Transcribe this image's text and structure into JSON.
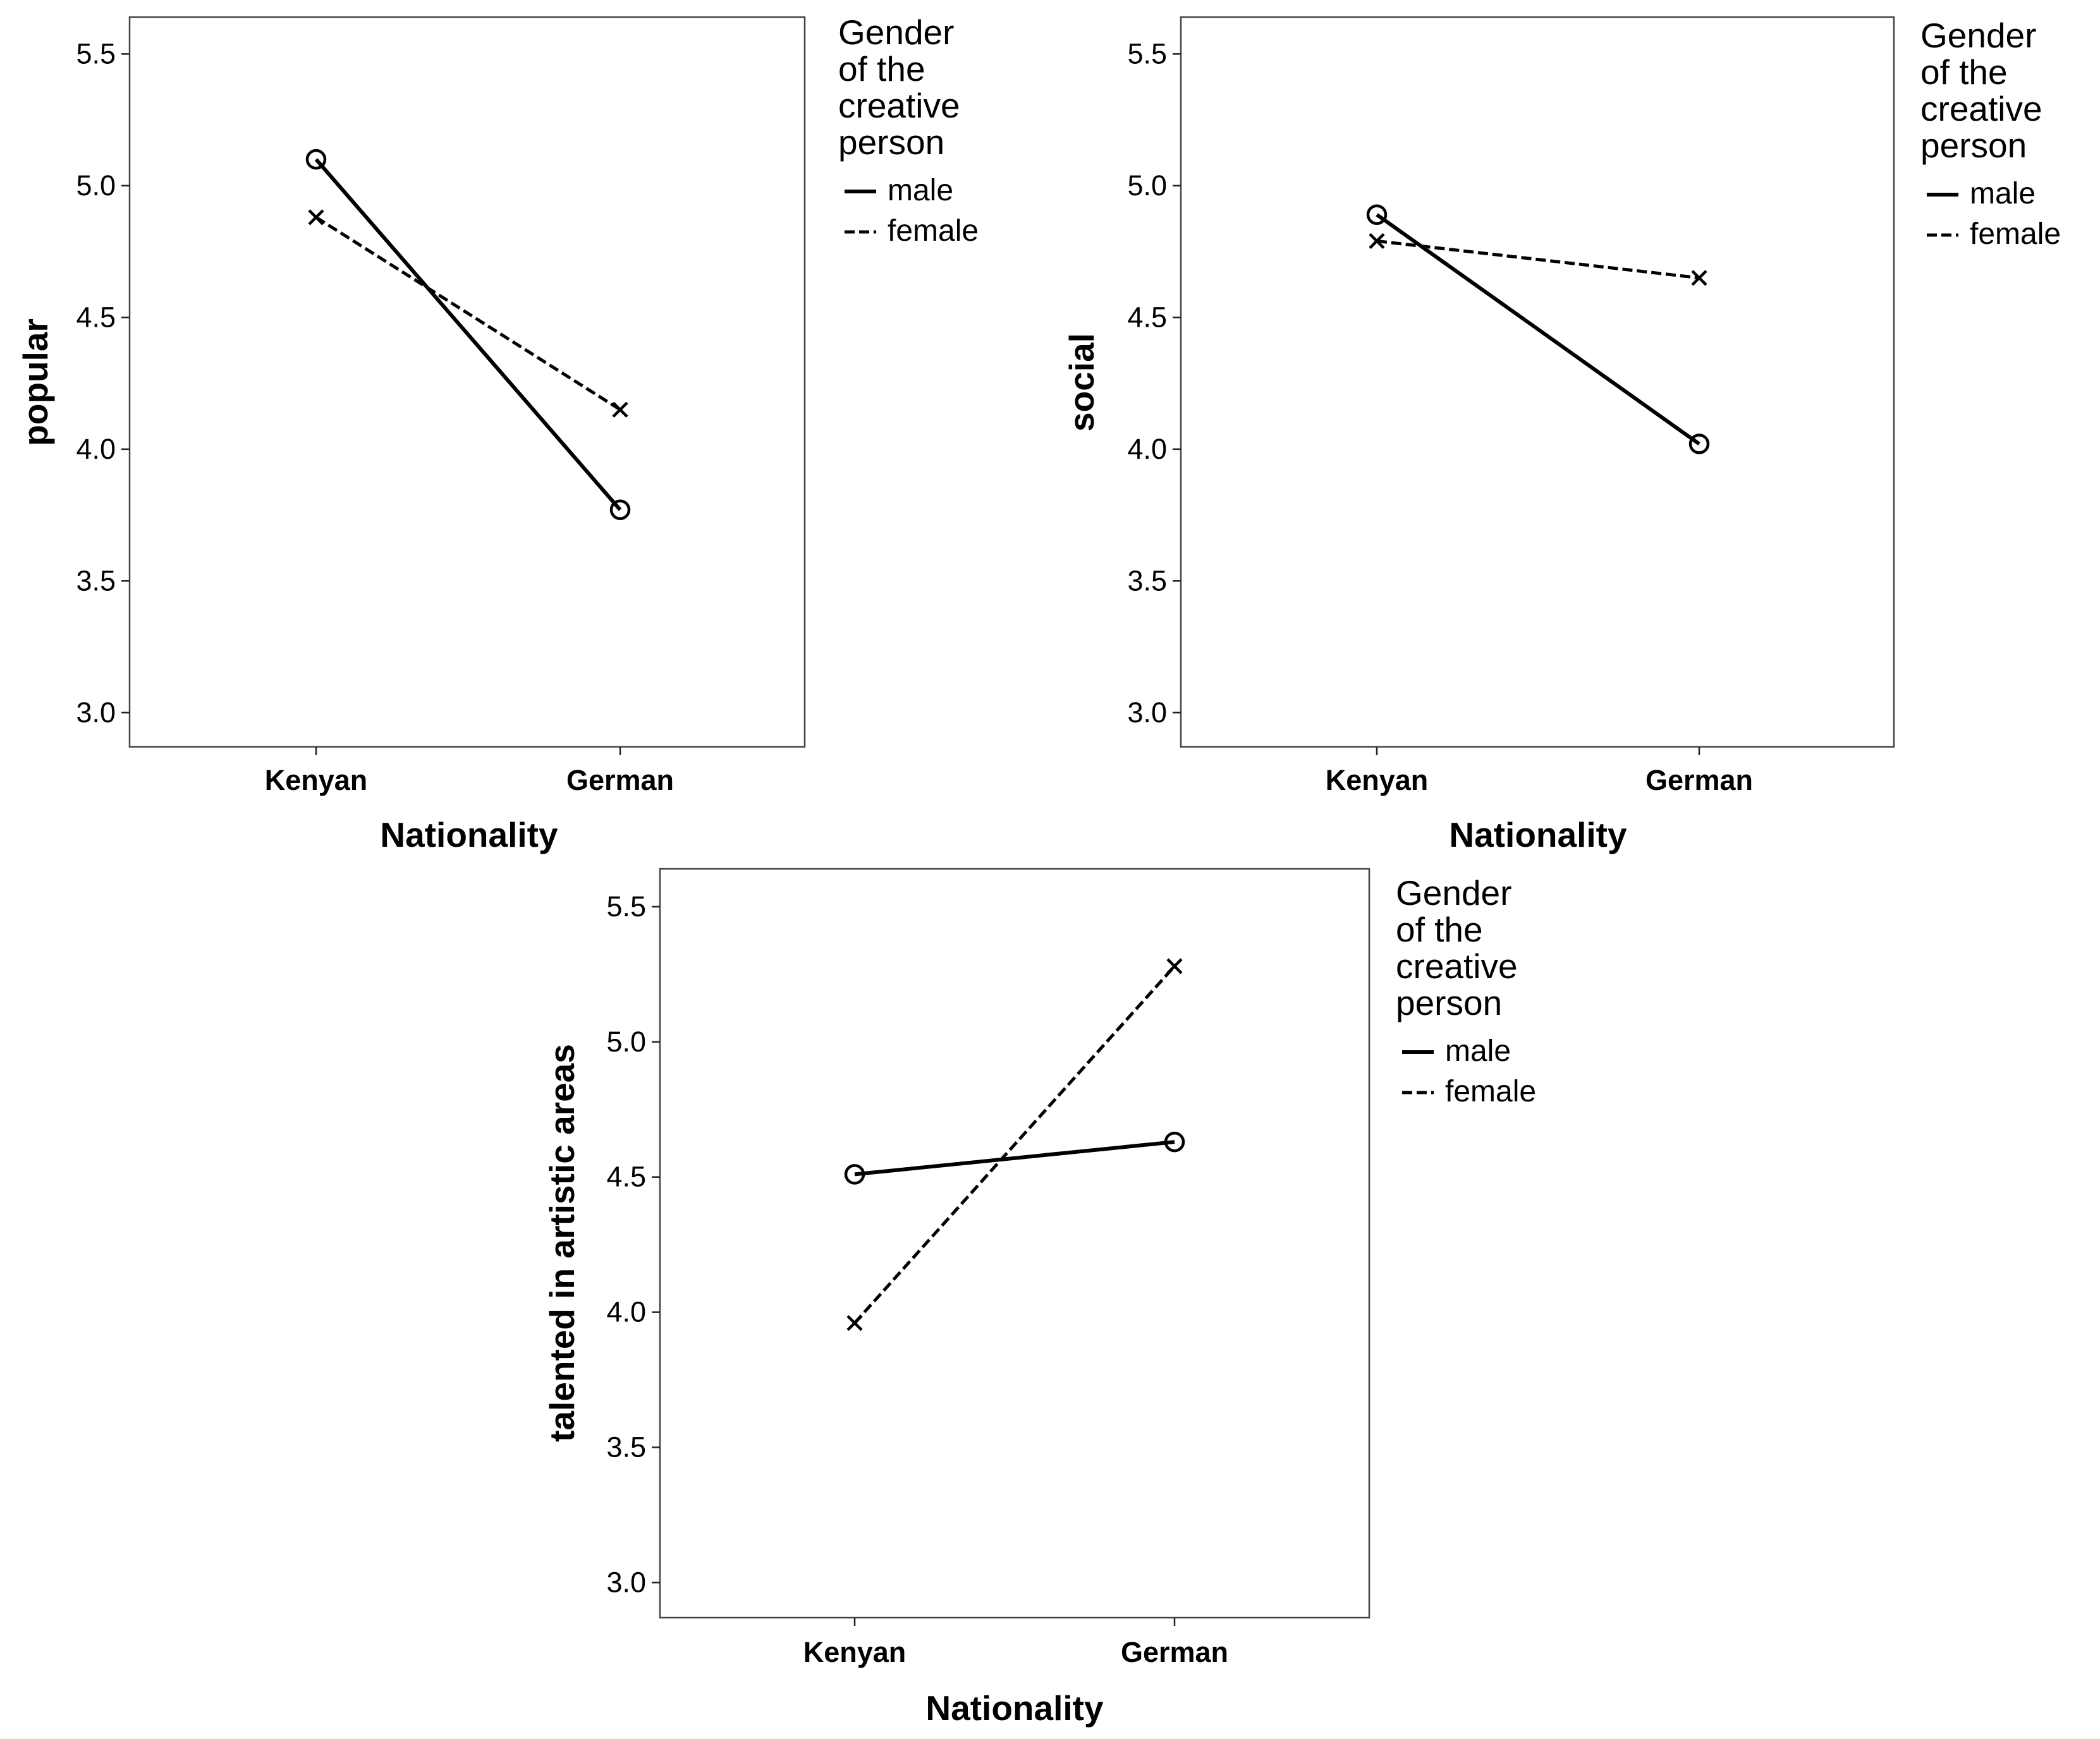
{
  "chart_data": [
    {
      "type": "line",
      "title": "",
      "xlabel": "Nationality",
      "ylabel": "popular",
      "categories": [
        "Kenyan",
        "German"
      ],
      "yticks": [
        "3.0",
        "3.5",
        "4.0",
        "4.5",
        "5.0",
        "5.5"
      ],
      "ylim": [
        2.87,
        5.64
      ],
      "series": [
        {
          "name": "male",
          "marker": "circle",
          "style": "solid",
          "values": [
            5.1,
            3.77
          ]
        },
        {
          "name": "female",
          "marker": "x",
          "style": "dashed",
          "values": [
            4.88,
            4.15
          ]
        }
      ],
      "legend": {
        "title_lines": [
          "Gender",
          "of the",
          "creative",
          "person"
        ],
        "placement": "right"
      }
    },
    {
      "type": "line",
      "title": "",
      "xlabel": "Nationality",
      "ylabel": "social",
      "categories": [
        "Kenyan",
        "German"
      ],
      "yticks": [
        "3.0",
        "3.5",
        "4.0",
        "4.5",
        "5.0",
        "5.5"
      ],
      "ylim": [
        2.87,
        5.64
      ],
      "series": [
        {
          "name": "male",
          "marker": "circle",
          "style": "solid",
          "values": [
            4.89,
            4.02
          ]
        },
        {
          "name": "female",
          "marker": "x",
          "style": "dashed",
          "values": [
            4.79,
            4.65
          ]
        }
      ],
      "legend": {
        "title_lines": [
          "Gender",
          "of the",
          "creative",
          "person"
        ],
        "placement": "right"
      }
    },
    {
      "type": "line",
      "title": "",
      "xlabel": "Nationality",
      "ylabel": "talented in artistic areas",
      "categories": [
        "Kenyan",
        "German"
      ],
      "yticks": [
        "3.0",
        "3.5",
        "4.0",
        "4.5",
        "5.0",
        "5.5"
      ],
      "ylim": [
        2.87,
        5.64
      ],
      "series": [
        {
          "name": "male",
          "marker": "circle",
          "style": "solid",
          "values": [
            4.51,
            4.63
          ]
        },
        {
          "name": "female",
          "marker": "x",
          "style": "dashed",
          "values": [
            3.96,
            5.28
          ]
        }
      ],
      "legend": {
        "title_lines": [
          "Gender",
          "of the",
          "creative",
          "person"
        ],
        "placement": "right"
      }
    }
  ]
}
